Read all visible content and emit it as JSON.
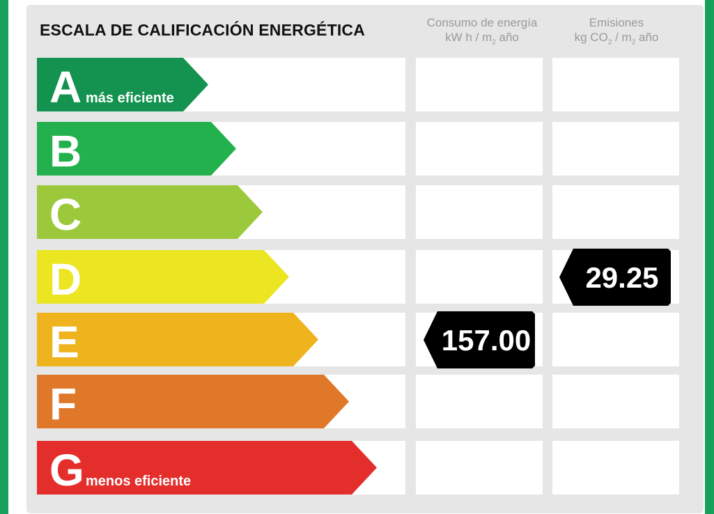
{
  "title": "ESCALA DE CALIFICACIÓN ENERGÉTICA",
  "columns": {
    "consumo": {
      "line1": "Consumo de energía",
      "unit_pre": "kW h / m",
      "unit_sub": "2",
      "unit_post": " año"
    },
    "emisiones": {
      "line1": "Emisiones",
      "unit_pre": "kg CO",
      "unit_sub1": "2",
      "unit_mid": " / m",
      "unit_sub2": "2",
      "unit_post": " año"
    }
  },
  "chart_data": {
    "type": "table",
    "title": "ESCALA DE CALIFICACIÓN ENERGÉTICA",
    "classes": [
      {
        "letter": "A",
        "sublabel": "más eficiente",
        "color": "#13934f"
      },
      {
        "letter": "B",
        "sublabel": "",
        "color": "#22b14c"
      },
      {
        "letter": "C",
        "sublabel": "",
        "color": "#9cc93b"
      },
      {
        "letter": "D",
        "sublabel": "",
        "color": "#ebe621"
      },
      {
        "letter": "E",
        "sublabel": "",
        "color": "#efb31d"
      },
      {
        "letter": "F",
        "sublabel": "",
        "color": "#e07829"
      },
      {
        "letter": "G",
        "sublabel": "menos eficiente",
        "color": "#e32e2c"
      }
    ],
    "ratings": [
      {
        "column": "consumo",
        "class": "E",
        "value": "157.00"
      },
      {
        "column": "emisiones",
        "class": "D",
        "value": "29.25"
      }
    ]
  }
}
